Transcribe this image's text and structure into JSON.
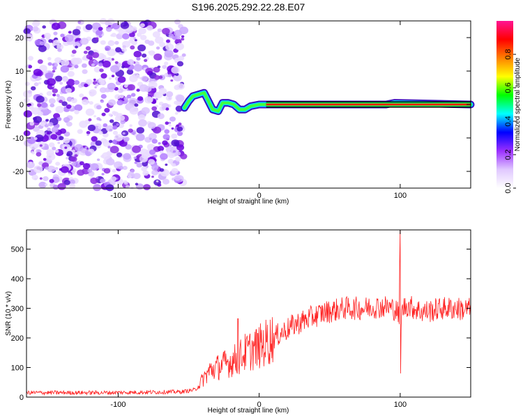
{
  "title": "S196.2025.292.22.28.E07",
  "chart_data": [
    {
      "type": "heatmap",
      "xlabel": "Height of straight line (km)",
      "ylabel": "Frequency (Hz)",
      "xlim": [
        -165,
        150
      ],
      "ylim": [
        -25,
        25
      ],
      "xticks": [
        -100,
        0,
        100
      ],
      "yticks": [
        -20,
        -10,
        0,
        10,
        20
      ],
      "noise_region_x": [
        -165,
        -53
      ],
      "signal_trace": [
        {
          "x": -53,
          "y": -1
        },
        {
          "x": -50,
          "y": 1
        },
        {
          "x": -47,
          "y": 2.5
        },
        {
          "x": -43,
          "y": 3
        },
        {
          "x": -39,
          "y": 3.5
        },
        {
          "x": -36,
          "y": 1
        },
        {
          "x": -33,
          "y": -1.5
        },
        {
          "x": -29,
          "y": -2
        },
        {
          "x": -26,
          "y": 0.5
        },
        {
          "x": -22,
          "y": 0.5
        },
        {
          "x": -18,
          "y": 0
        },
        {
          "x": -14,
          "y": -1.5
        },
        {
          "x": -10,
          "y": -1.5
        },
        {
          "x": -6,
          "y": -0.5
        },
        {
          "x": 0,
          "y": 0
        },
        {
          "x": 10,
          "y": 0
        },
        {
          "x": 90,
          "y": 0
        },
        {
          "x": 96,
          "y": 0.5
        },
        {
          "x": 150,
          "y": 0
        }
      ],
      "colorbar": {
        "label": "Normalized spectral amplitude",
        "range": [
          0,
          1
        ],
        "ticks": [
          "0.0",
          "0.2",
          "0.4",
          "0.6",
          "0.8"
        ],
        "colors": [
          "#ffffff",
          "#e0c8ff",
          "#9b30ff",
          "#0000ff",
          "#00ffff",
          "#00ff00",
          "#ffff00",
          "#ff8000",
          "#ff0000",
          "#ff1493"
        ]
      }
    },
    {
      "type": "line",
      "xlabel": "Height of straight line (km)",
      "ylabel": "SNR (10 * v/v)",
      "xlim": [
        -165,
        150
      ],
      "ylim": [
        0,
        565
      ],
      "xticks": [
        -100,
        0,
        100
      ],
      "yticks": [
        0,
        100,
        200,
        300,
        400,
        500
      ],
      "series": [
        {
          "name": "SNR",
          "color": "#ff2020",
          "x": [
            -165,
            -150,
            -130,
            -110,
            -90,
            -70,
            -55,
            -45,
            -40,
            -35,
            -30,
            -25,
            -20,
            -15,
            -10,
            -5,
            0,
            5,
            10,
            15,
            20,
            25,
            30,
            35,
            40,
            45,
            50,
            55,
            60,
            65,
            70,
            75,
            80,
            85,
            90,
            95,
            98,
            100,
            102,
            105,
            110,
            115,
            120,
            125,
            130,
            135,
            140,
            145,
            150
          ],
          "y": [
            15,
            15,
            15,
            15,
            16,
            17,
            18,
            25,
            60,
            90,
            100,
            110,
            120,
            130,
            150,
            160,
            170,
            185,
            200,
            215,
            230,
            245,
            255,
            265,
            275,
            285,
            290,
            295,
            300,
            300,
            300,
            300,
            305,
            305,
            305,
            300,
            290,
            250,
            300,
            310,
            300,
            290,
            290,
            295,
            300,
            300,
            300,
            295,
            300
          ]
        }
      ],
      "spikes": [
        {
          "x": -15,
          "y": 265
        },
        {
          "x": 99.5,
          "y": 450
        },
        {
          "x": 100,
          "y": 565
        },
        {
          "x": 100.3,
          "y": 80
        }
      ]
    }
  ]
}
